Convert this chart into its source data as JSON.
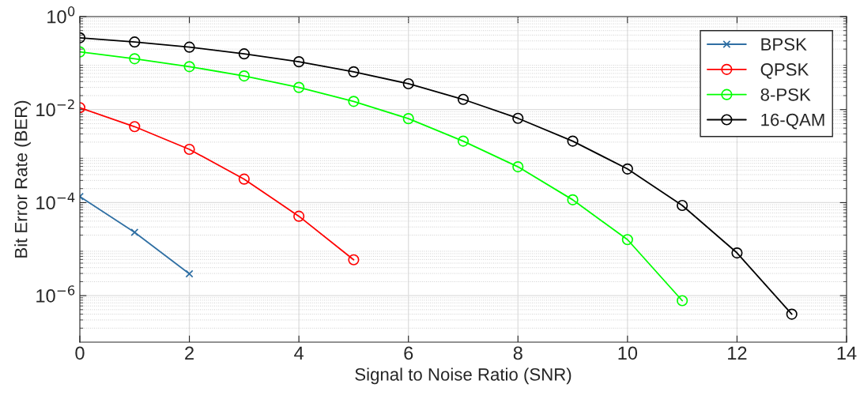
{
  "chart_data": {
    "type": "line",
    "xlabel": "Signal to Noise Ratio (SNR)",
    "ylabel": "Bit Error Rate (BER)",
    "log": "y",
    "xlim": [
      0,
      14
    ],
    "xticks": [
      0,
      2,
      4,
      6,
      8,
      10,
      12,
      14
    ],
    "ylim": [
      1e-07,
      1
    ],
    "yticks": [
      {
        "value": 1e-06,
        "label": "10$^{−6}$"
      },
      {
        "value": 0.0001,
        "label": "10$^{−4}$"
      },
      {
        "value": 0.01,
        "label": "10$^{−2}$"
      },
      {
        "value": 1,
        "label": "10$^{0}$"
      }
    ],
    "grid": true,
    "legend": "top right",
    "line_style": "solid",
    "series": [
      {
        "name": "BPSK",
        "color": "#2f6fa3",
        "marker": "cross",
        "x": [
          0,
          1,
          2
        ],
        "values": [
          0.000135,
          2.3e-05,
          2.95e-06
        ]
      },
      {
        "name": "QPSK",
        "color": "#ff0000",
        "marker": "circle",
        "x": [
          0,
          1,
          2,
          3,
          4,
          5
        ],
        "values": [
          0.011,
          0.0043,
          0.0014,
          0.00032,
          5.1e-05,
          5.9e-06
        ]
      },
      {
        "name": "8-PSK",
        "color": "#00ff00",
        "marker": "circle",
        "x": [
          0,
          1,
          2,
          3,
          4,
          5,
          6,
          7,
          8,
          9,
          10,
          11
        ],
        "values": [
          0.174,
          0.124,
          0.084,
          0.053,
          0.03,
          0.015,
          0.0064,
          0.0021,
          0.00059,
          0.000115,
          1.6e-05,
          7.8e-07
        ]
      },
      {
        "name": "16-QAM",
        "color": "#000000",
        "marker": "circle",
        "x": [
          0,
          1,
          2,
          3,
          4,
          5,
          6,
          7,
          8,
          9,
          10,
          11,
          12,
          13
        ],
        "values": [
          0.35,
          0.284,
          0.22,
          0.158,
          0.107,
          0.065,
          0.036,
          0.0166,
          0.0065,
          0.0021,
          0.00053,
          8.7e-05,
          8.3e-06,
          4e-07
        ]
      }
    ]
  }
}
